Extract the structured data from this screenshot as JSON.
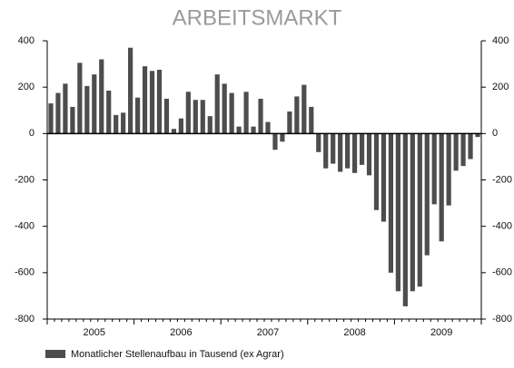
{
  "chart_data": {
    "type": "bar",
    "title": "ARBEITSMARKT",
    "categories": [
      null,
      null,
      null,
      null,
      null,
      null,
      "2005",
      null,
      null,
      null,
      null,
      null,
      null,
      null,
      null,
      null,
      null,
      null,
      "2006",
      null,
      null,
      null,
      null,
      null,
      null,
      null,
      null,
      null,
      null,
      null,
      "2007",
      null,
      null,
      null,
      null,
      null,
      null,
      null,
      null,
      null,
      null,
      null,
      "2008",
      null,
      null,
      null,
      null,
      null,
      null,
      null,
      null,
      null,
      null,
      null,
      "2009",
      null,
      null,
      null,
      null,
      null
    ],
    "series": [
      {
        "name": "Monatlicher Stellenaufbau in Tausend (ex Agrar)",
        "color": "#4d4d4d",
        "values": [
          130,
          175,
          215,
          115,
          305,
          205,
          255,
          320,
          185,
          80,
          90,
          370,
          155,
          290,
          270,
          275,
          150,
          20,
          65,
          180,
          145,
          145,
          75,
          255,
          215,
          175,
          30,
          180,
          30,
          150,
          50,
          -70,
          -35,
          95,
          160,
          210,
          115,
          -80,
          -150,
          -130,
          -165,
          -150,
          -170,
          -135,
          -180,
          -330,
          -380,
          -600,
          -680,
          -745,
          -680,
          -660,
          -525,
          -305,
          -465,
          -310,
          -160,
          -140,
          -110,
          -15
        ]
      }
    ],
    "ylim": [
      -800,
      400
    ],
    "yticks": [
      -800,
      -600,
      -400,
      -200,
      0,
      200,
      400
    ],
    "legend": "bottom-left"
  }
}
